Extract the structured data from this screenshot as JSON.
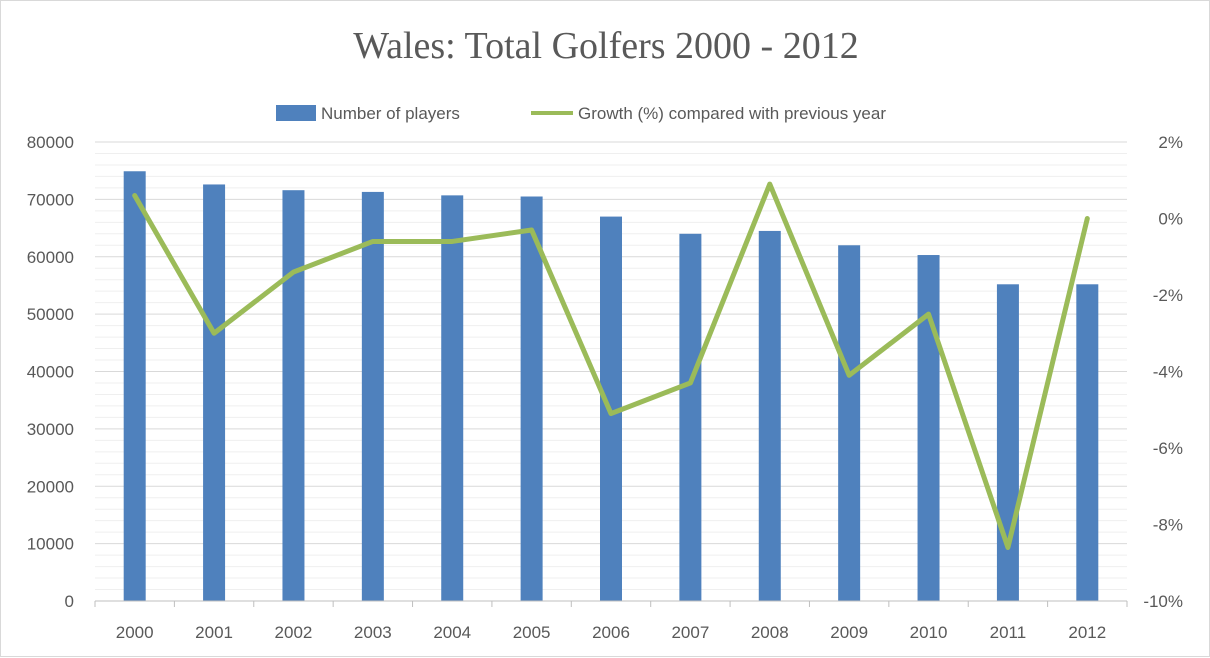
{
  "chart_data": {
    "type": "bar",
    "title": "Wales: Total Golfers 2000 - 2012",
    "categories": [
      "2000",
      "2001",
      "2002",
      "2003",
      "2004",
      "2005",
      "2006",
      "2007",
      "2008",
      "2009",
      "2010",
      "2011",
      "2012"
    ],
    "series": [
      {
        "name": "Number of players",
        "type": "bar",
        "axis": "left",
        "color": "#4f81bd",
        "values": [
          74900,
          72600,
          71600,
          71300,
          70700,
          70500,
          67000,
          64000,
          64500,
          62000,
          60300,
          55200,
          55200
        ]
      },
      {
        "name": "Growth (%) compared with previous year",
        "type": "line",
        "axis": "right",
        "color": "#9bbb59",
        "values": [
          0.6,
          -3.0,
          -1.4,
          -0.6,
          -0.6,
          -0.3,
          -5.1,
          -4.3,
          0.9,
          -4.1,
          -2.5,
          -8.6,
          0.0
        ]
      }
    ],
    "y_left": {
      "ylim": [
        0,
        80000
      ],
      "ticks": [
        0,
        10000,
        20000,
        30000,
        40000,
        50000,
        60000,
        70000,
        80000
      ],
      "tick_labels": [
        "0",
        "10000",
        "20000",
        "30000",
        "40000",
        "50000",
        "60000",
        "70000",
        "80000"
      ]
    },
    "y_right": {
      "ylim": [
        -10,
        2
      ],
      "ticks": [
        -10,
        -8,
        -6,
        -4,
        -2,
        0,
        2
      ],
      "tick_labels": [
        "-10%",
        "-8%",
        "-6%",
        "-4%",
        "-2%",
        "0%",
        "2%"
      ]
    },
    "legend_position": "top-center",
    "grid": true
  }
}
